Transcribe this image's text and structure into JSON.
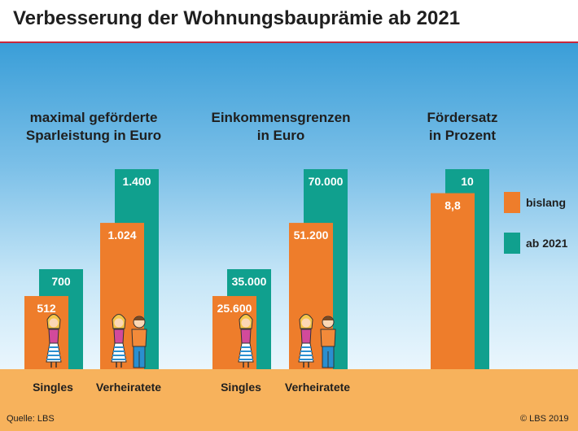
{
  "header": {
    "title": "Verbesserung der Wohnungsbauprämie ab 2021"
  },
  "footer": {
    "source": "Quelle: LBS",
    "copyright": "© LBS 2019"
  },
  "colors": {
    "bislang": "#ee7d2b",
    "ab_2021": "#10a08e",
    "ground": "#f7b25c",
    "rule": "#c8283c"
  },
  "legend": [
    {
      "label": "bislang",
      "color": "#ee7d2b"
    },
    {
      "label": "ab 2021",
      "color": "#10a08e"
    }
  ],
  "chart_data": [
    {
      "type": "bar",
      "title": "maximal geförderte Sparleistung in Euro",
      "title_lines": [
        "maximal geförderte",
        "Sparleistung in Euro"
      ],
      "categories": [
        "Singles",
        "Verheiratete"
      ],
      "series": [
        {
          "name": "bislang",
          "values": [
            512,
            1024
          ],
          "labels": [
            "512",
            "1.024"
          ]
        },
        {
          "name": "ab 2021",
          "values": [
            700,
            1400
          ],
          "labels": [
            "700",
            "1.400"
          ]
        }
      ],
      "ylim": [
        0,
        1400
      ]
    },
    {
      "type": "bar",
      "title": "Einkommensgrenzen in Euro",
      "title_lines": [
        "Einkommensgrenzen",
        "in Euro"
      ],
      "categories": [
        "Singles",
        "Verheiratete"
      ],
      "series": [
        {
          "name": "bislang",
          "values": [
            25600,
            51200
          ],
          "labels": [
            "25.600",
            "51.200"
          ]
        },
        {
          "name": "ab 2021",
          "values": [
            35000,
            70000
          ],
          "labels": [
            "35.000",
            "70.000"
          ]
        }
      ],
      "ylim": [
        0,
        70000
      ]
    },
    {
      "type": "bar",
      "title": "Fördersatz in Prozent",
      "title_lines": [
        "Fördersatz",
        "in Prozent"
      ],
      "categories": [
        ""
      ],
      "series": [
        {
          "name": "bislang",
          "values": [
            8.8
          ],
          "labels": [
            "8,8"
          ]
        },
        {
          "name": "ab 2021",
          "values": [
            10
          ],
          "labels": [
            "10"
          ]
        }
      ],
      "ylim": [
        0,
        10
      ]
    }
  ]
}
